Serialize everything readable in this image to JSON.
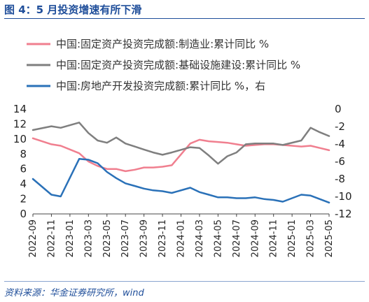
{
  "header": {
    "title": "图 4：5 月投资增速有所下滑"
  },
  "footer": {
    "source": "资料来源：华金证券研究所，wind"
  },
  "chart_data": {
    "type": "line",
    "title": "",
    "x": [
      "2022-09",
      "2022-10",
      "2022-11",
      "2022-12",
      "2023-01",
      "2023-02",
      "2023-03",
      "2023-04",
      "2023-05",
      "2023-06",
      "2023-07",
      "2023-08",
      "2023-09",
      "2023-10",
      "2023-11",
      "2023-12",
      "2024-01",
      "2024-02",
      "2024-03",
      "2024-04",
      "2024-05",
      "2024-06",
      "2024-07",
      "2024-08",
      "2024-09",
      "2024-10",
      "2024-11",
      "2024-12",
      "2025-01",
      "2025-02",
      "2025-03",
      "2025-04",
      "2025-05"
    ],
    "xticks": [
      "2022-09",
      "2022-11",
      "2023-01",
      "2023-03",
      "2023-05",
      "2023-07",
      "2023-09",
      "2023-11",
      "2024-01",
      "2024-03",
      "2024-05",
      "2024-07",
      "2024-09",
      "2024-11",
      "2025-01",
      "2025-03",
      "2025-05"
    ],
    "y_left": {
      "min": 0,
      "max": 14,
      "ticks": [
        0,
        2,
        4,
        6,
        8,
        10,
        12,
        14
      ]
    },
    "y_right": {
      "min": -12,
      "max": 0,
      "ticks": [
        0,
        -2,
        -4,
        -6,
        -8,
        -10,
        -12
      ]
    },
    "series": [
      {
        "name": "中国:固定资产投资完成额:制造业:累计同比 %",
        "axis": "left",
        "color": "#f07f8f",
        "values": [
          10.1,
          null,
          9.3,
          9.1,
          null,
          8.1,
          7.0,
          6.4,
          6.0,
          6.0,
          5.7,
          5.9,
          6.2,
          6.2,
          6.3,
          6.5,
          null,
          9.4,
          9.9,
          9.7,
          9.6,
          9.5,
          9.3,
          9.1,
          9.2,
          9.3,
          9.3,
          9.2,
          null,
          9.0,
          9.1,
          8.8,
          8.5
        ]
      },
      {
        "name": "中国:固定资产投资完成额:基础设施建设:累计同比 %",
        "axis": "left",
        "color": "#7f7f7f",
        "values": [
          11.2,
          null,
          11.7,
          11.5,
          null,
          12.2,
          10.8,
          9.8,
          9.5,
          10.2,
          9.4,
          9.0,
          8.6,
          8.2,
          7.9,
          8.2,
          null,
          8.9,
          8.8,
          7.8,
          6.7,
          7.7,
          8.2,
          9.3,
          9.4,
          9.4,
          9.4,
          9.2,
          null,
          9.8,
          11.5,
          10.9,
          10.4
        ]
      },
      {
        "name": "中国:房地产开发投资完成额:累计同比 %，右",
        "axis": "right",
        "color": "#2a71b8",
        "values": [
          -8.0,
          null,
          -9.8,
          -10.0,
          null,
          -5.7,
          -5.8,
          -6.2,
          -7.2,
          -7.9,
          -8.5,
          -8.8,
          -9.1,
          -9.3,
          -9.4,
          -9.6,
          null,
          -9.0,
          -9.5,
          -9.8,
          -10.1,
          -10.1,
          -10.2,
          -10.2,
          -10.1,
          -10.3,
          -10.4,
          -10.6,
          null,
          -9.8,
          -9.9,
          -10.3,
          -10.7
        ]
      }
    ]
  }
}
